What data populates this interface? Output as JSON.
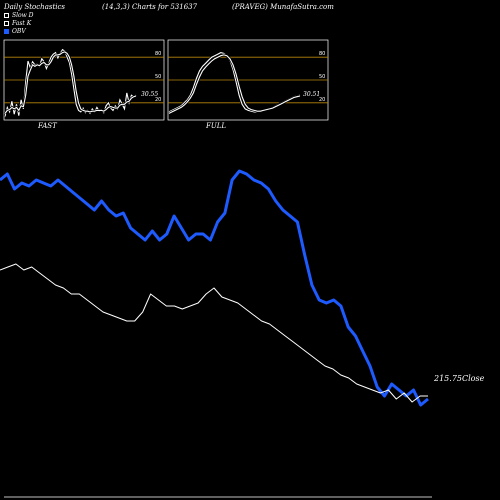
{
  "header": {
    "left": "Daily Stochastics",
    "middle": "(14,3,3) Charts for 531637",
    "right": "(PRAVEG) MunafaSutra.com"
  },
  "legend": [
    {
      "label": "Slow  D",
      "color": "#ffffff",
      "icon": "hollow-square"
    },
    {
      "label": "Fast K",
      "color": "#ffffff",
      "icon": "hollow-square"
    },
    {
      "label": "OBV",
      "color": "#1e5bff",
      "icon": "filled-square"
    }
  ],
  "panels": {
    "fast": {
      "label": "FAST",
      "value": "30.55",
      "levels": [
        "80",
        "50",
        "20"
      ]
    },
    "full": {
      "label": "FULL",
      "value": "30.51",
      "levels": [
        "80",
        "50",
        "20"
      ]
    }
  },
  "close_label": "215.75Close",
  "colors": {
    "obv": "#1e5bff",
    "price": "#ffffff",
    "level_line": "#b8860b",
    "background": "#000000"
  },
  "chart_data": [
    {
      "type": "line",
      "title": "FAST",
      "ylim": [
        0,
        100
      ],
      "levels": [
        80,
        50,
        20
      ],
      "series": [
        {
          "name": "Fast K",
          "values": [
            2,
            14,
            8,
            22,
            5,
            18,
            3,
            24,
            12,
            48,
            75,
            66,
            74,
            70,
            71,
            68,
            78,
            74,
            65,
            72,
            80,
            84,
            86,
            79,
            85,
            90,
            88,
            80,
            73,
            58,
            38,
            18,
            10,
            8,
            13,
            7,
            10,
            6,
            12,
            8,
            14,
            9,
            11,
            7,
            16,
            20,
            13,
            10,
            16,
            12,
            24,
            18,
            12,
            33,
            20,
            30,
            28,
            30
          ]
        },
        {
          "name": "Slow  D",
          "values": [
            6,
            10,
            11,
            14,
            12,
            14,
            10,
            16,
            15,
            30,
            55,
            63,
            70,
            68,
            70,
            69,
            72,
            73,
            70,
            70,
            74,
            80,
            83,
            83,
            84,
            86,
            87,
            85,
            80,
            70,
            55,
            35,
            20,
            12,
            10,
            9,
            9,
            8,
            9,
            9,
            10,
            10,
            10,
            9,
            11,
            14,
            15,
            14,
            13,
            13,
            17,
            18,
            18,
            21,
            22,
            26,
            28,
            29
          ]
        }
      ]
    },
    {
      "type": "line",
      "title": "FULL",
      "ylim": [
        0,
        100
      ],
      "levels": [
        80,
        50,
        20
      ],
      "series": [
        {
          "name": "Fast K",
          "values": [
            8,
            10,
            12,
            14,
            16,
            20,
            24,
            30,
            40,
            52,
            62,
            68,
            72,
            76,
            80,
            82,
            84,
            86,
            85,
            82,
            76,
            64,
            48,
            30,
            18,
            12,
            10,
            9,
            8,
            8,
            9,
            10,
            11,
            12,
            14,
            16,
            18,
            20,
            22,
            24,
            26,
            28,
            29,
            30
          ]
        },
        {
          "name": "Slow  D",
          "values": [
            6,
            8,
            10,
            12,
            14,
            17,
            21,
            26,
            33,
            44,
            54,
            62,
            67,
            71,
            75,
            78,
            80,
            82,
            83,
            82,
            78,
            70,
            58,
            42,
            28,
            18,
            13,
            11,
            10,
            9,
            9,
            10,
            11,
            12,
            13,
            15,
            17,
            19,
            21,
            23,
            25,
            27,
            28,
            29
          ]
        }
      ]
    },
    {
      "type": "line",
      "series": [
        {
          "name": "OBV",
          "values": [
            0.8,
            0.82,
            0.77,
            0.79,
            0.78,
            0.8,
            0.79,
            0.78,
            0.8,
            0.78,
            0.76,
            0.74,
            0.72,
            0.7,
            0.73,
            0.7,
            0.68,
            0.69,
            0.64,
            0.62,
            0.6,
            0.63,
            0.6,
            0.62,
            0.68,
            0.64,
            0.6,
            0.62,
            0.62,
            0.6,
            0.66,
            0.69,
            0.8,
            0.83,
            0.82,
            0.8,
            0.79,
            0.77,
            0.73,
            0.7,
            0.68,
            0.66,
            0.55,
            0.45,
            0.4,
            0.39,
            0.4,
            0.38,
            0.31,
            0.28,
            0.23,
            0.18,
            0.11,
            0.08,
            0.12,
            0.1,
            0.08,
            0.1,
            0.05,
            0.07
          ]
        },
        {
          "name": "Close",
          "values": [
            0.5,
            0.51,
            0.52,
            0.5,
            0.51,
            0.49,
            0.47,
            0.45,
            0.44,
            0.42,
            0.42,
            0.4,
            0.38,
            0.36,
            0.35,
            0.34,
            0.33,
            0.33,
            0.36,
            0.42,
            0.4,
            0.38,
            0.38,
            0.37,
            0.38,
            0.39,
            0.42,
            0.44,
            0.41,
            0.4,
            0.39,
            0.37,
            0.35,
            0.33,
            0.32,
            0.3,
            0.28,
            0.26,
            0.24,
            0.22,
            0.2,
            0.18,
            0.17,
            0.15,
            0.14,
            0.12,
            0.11,
            0.1,
            0.09,
            0.1,
            0.07,
            0.09,
            0.06,
            0.08,
            0.08
          ]
        }
      ]
    }
  ]
}
